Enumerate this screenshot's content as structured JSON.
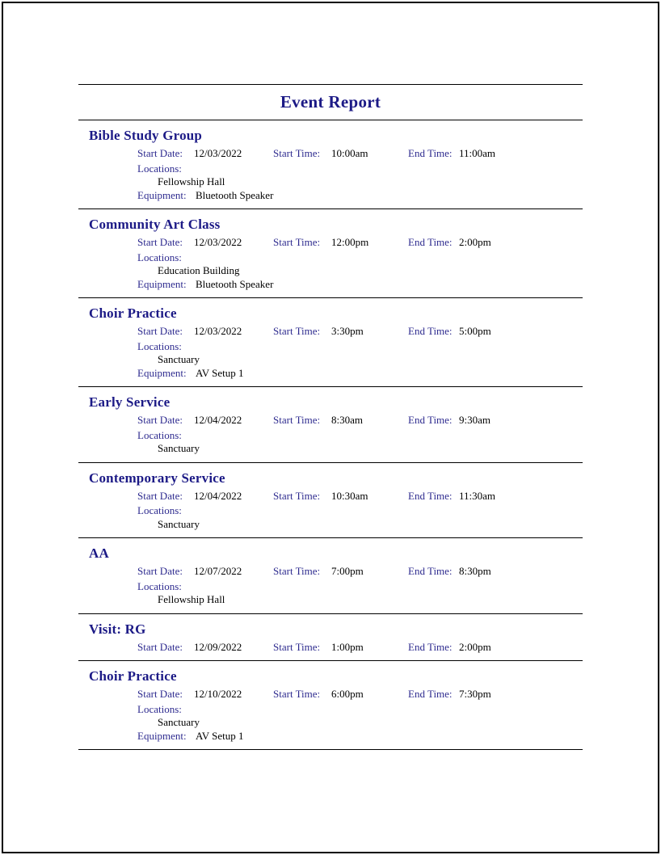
{
  "report": {
    "title": "Event Report"
  },
  "field_labels": {
    "start_date": "Start Date:",
    "start_time": "Start Time:",
    "end_time": "End Time:",
    "locations": "Locations:",
    "equipment": "Equipment:"
  },
  "colors": {
    "heading": "#1c1a86",
    "label": "#2e2b8f",
    "value": "#000000",
    "rule": "#000000"
  },
  "events": [
    {
      "name": "Bible Study Group",
      "start_date": "12/03/2022",
      "start_time": "10:00am",
      "end_time": "11:00am",
      "locations": [
        "Fellowship Hall"
      ],
      "equipment": "Bluetooth Speaker"
    },
    {
      "name": "Community Art Class",
      "start_date": "12/03/2022",
      "start_time": "12:00pm",
      "end_time": "2:00pm",
      "locations": [
        "Education Building"
      ],
      "equipment": "Bluetooth Speaker"
    },
    {
      "name": "Choir Practice",
      "start_date": "12/03/2022",
      "start_time": "3:30pm",
      "end_time": "5:00pm",
      "locations": [
        "Sanctuary"
      ],
      "equipment": "AV Setup 1"
    },
    {
      "name": "Early Service",
      "start_date": "12/04/2022",
      "start_time": "8:30am",
      "end_time": "9:30am",
      "locations": [
        "Sanctuary"
      ]
    },
    {
      "name": "Contemporary Service",
      "start_date": "12/04/2022",
      "start_time": "10:30am",
      "end_time": "11:30am",
      "locations": [
        "Sanctuary"
      ]
    },
    {
      "name": "AA",
      "start_date": "12/07/2022",
      "start_time": "7:00pm",
      "end_time": "8:30pm",
      "locations": [
        "Fellowship Hall"
      ]
    },
    {
      "name": "Visit: RG",
      "start_date": "12/09/2022",
      "start_time": "1:00pm",
      "end_time": "2:00pm",
      "locations": []
    },
    {
      "name": "Choir Practice",
      "start_date": "12/10/2022",
      "start_time": "6:00pm",
      "end_time": "7:30pm",
      "locations": [
        "Sanctuary"
      ],
      "equipment": "AV Setup 1"
    }
  ]
}
